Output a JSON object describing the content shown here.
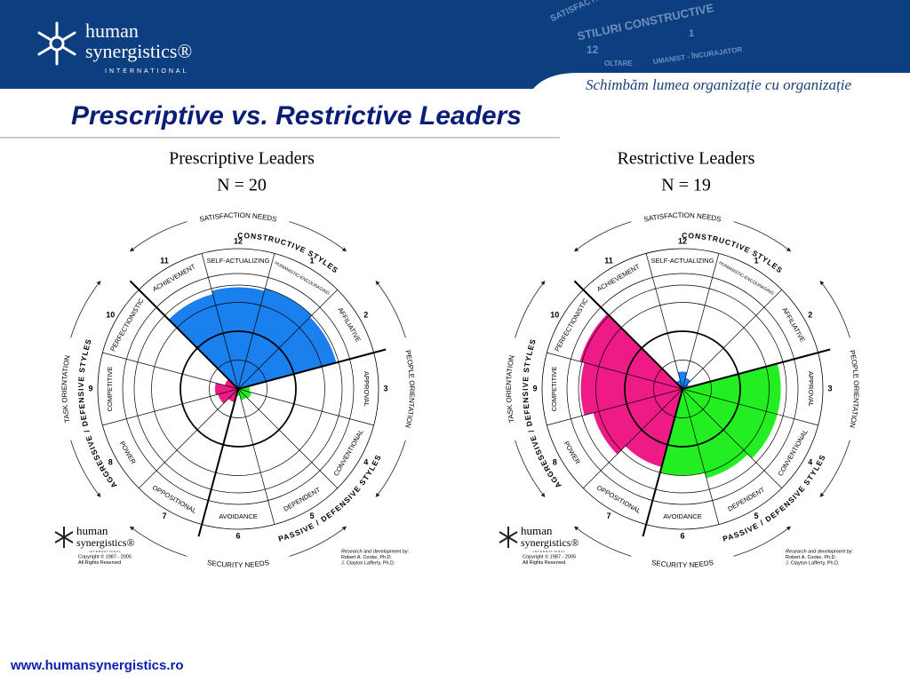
{
  "header": {
    "logo_name1": "human",
    "logo_name2": "synergistics®",
    "logo_tagline": "INTERNATIONAL",
    "watermark": [
      "SATISFACTIE",
      "STILURI CONSTRUCTIVE",
      "12",
      "1",
      "UMANIST - ÎNCURAJATOR",
      "OLTARE"
    ],
    "slogan": "Schimbăm lumea organizație cu organizație"
  },
  "title": "Prescriptive vs. Restrictive Leaders",
  "footer": "www.humansynergistics.ro",
  "chart_data": [
    {
      "type": "circumplex",
      "title": "Prescriptive Leaders",
      "subtitle": "N = 20",
      "categories": [
        "HUMANISTIC-ENCOURAGING",
        "AFFILIATIVE",
        "APPROVAL",
        "CONVENTIONAL",
        "DEPENDENT",
        "AVOIDANCE",
        "OPPOSITIONAL",
        "POWER",
        "COMPETITIVE",
        "PERFECTIONISTIC",
        "ACHIEVEMENT",
        "SELF-ACTUALIZING"
      ],
      "style_numbers": [
        1,
        2,
        3,
        4,
        5,
        6,
        7,
        8,
        9,
        10,
        11,
        12
      ],
      "values": [
        90,
        88,
        10,
        12,
        10,
        6,
        12,
        18,
        20,
        12,
        85,
        88
      ],
      "colors": [
        "#1a80ee",
        "#1a80ee",
        "#22ee22",
        "#22ee22",
        "#22ee22",
        "#22ee22",
        "#ee1a86",
        "#ee1a86",
        "#ee1a86",
        "#ee1a86",
        "#1a80ee",
        "#1a80ee"
      ],
      "rlim": [
        0,
        100
      ],
      "cluster_labels": [
        "CONSTRUCTIVE STYLES",
        "PASSIVE / DEFENSIVE STYLES",
        "AGGRESSIVE / DEFENSIVE STYLES"
      ],
      "outer_labels": [
        "SATISFACTION NEEDS",
        "PEOPLE ORIENTATION",
        "SECURITY NEEDS",
        "TASK ORIENTATION"
      ],
      "logo": [
        "human",
        "synergistics®",
        "INTERNATIONAL"
      ],
      "credits_left": [
        "Copyright © 1987 - 2005",
        "All Rights Reserved"
      ],
      "credits_right": [
        "Research and development by:",
        "Robert  A. Cooke, Ph.D.",
        "J. Clayton Lafferty, Ph.D."
      ]
    },
    {
      "type": "circumplex",
      "title": "Restrictive Leaders",
      "subtitle": "N = 19",
      "categories": [
        "HUMANISTIC-ENCOURAGING",
        "AFFILIATIVE",
        "APPROVAL",
        "CONVENTIONAL",
        "DEPENDENT",
        "AVOIDANCE",
        "OPPOSITIONAL",
        "POWER",
        "COMPETITIVE",
        "PERFECTIONISTIC",
        "ACHIEVEMENT",
        "SELF-ACTUALIZING"
      ],
      "style_numbers": [
        1,
        2,
        3,
        4,
        5,
        6,
        7,
        8,
        9,
        10,
        11,
        12
      ],
      "values": [
        10,
        6,
        85,
        85,
        80,
        75,
        70,
        80,
        88,
        92,
        8,
        15
      ],
      "colors": [
        "#1a80ee",
        "#1a80ee",
        "#22ee22",
        "#22ee22",
        "#22ee22",
        "#22ee22",
        "#ee1a86",
        "#ee1a86",
        "#ee1a86",
        "#ee1a86",
        "#1a80ee",
        "#1a80ee"
      ],
      "rlim": [
        0,
        100
      ],
      "cluster_labels": [
        "CONSTRUCTIVE STYLES",
        "PASSIVE / DEFENSIVE STYLES",
        "AGGRESSIVE / DEFENSIVE STYLES"
      ],
      "outer_labels": [
        "SATISFACTION NEEDS",
        "PEOPLE ORIENTATION",
        "SECURITY NEEDS",
        "TASK ORIENTATION"
      ],
      "logo": [
        "human",
        "synergistics®",
        "INTERNATIONAL"
      ],
      "credits_left": [
        "Copyright © 1987 - 2005",
        "All Rights Reserved"
      ],
      "credits_right": [
        "Research and development by:",
        "Robert  A. Cooke, Ph.D.",
        "J. Clayton Lafferty, Ph.D."
      ]
    }
  ]
}
